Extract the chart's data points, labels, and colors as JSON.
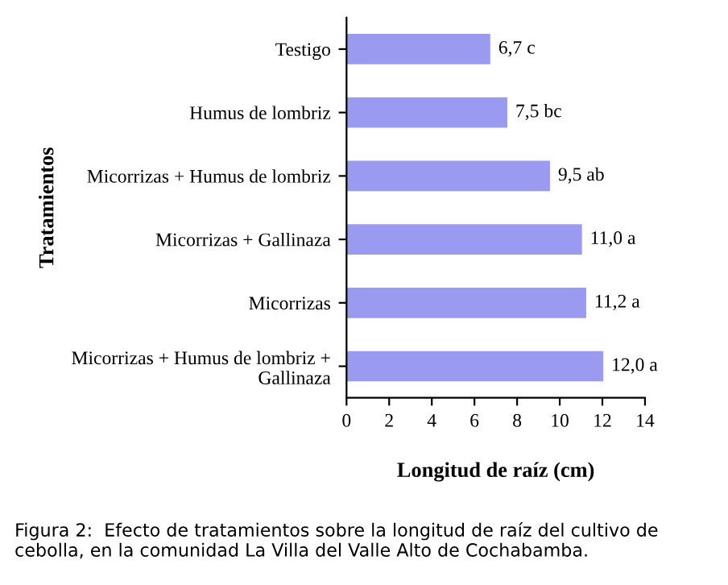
{
  "chart_data": {
    "type": "bar",
    "orientation": "horizontal",
    "xlabel": "Longitud de raíz (cm)",
    "ylabel": "Tratamientos",
    "categories": [
      "Testigo",
      "Humus de lombriz",
      "Micorrizas + Humus de lombriz",
      "Micorrizas + Gallinaza",
      "Micorrizas",
      "Micorrizas + Humus de lombriz +\nGallinaza"
    ],
    "values": [
      6.7,
      7.5,
      9.5,
      11.0,
      11.2,
      12.0
    ],
    "value_labels": [
      "6,7 c",
      "7,5 bc",
      "9,5 ab",
      "11,0 a",
      "11,2 a",
      "12,0 a"
    ],
    "color": "#9a9af0",
    "xlim": [
      0,
      14
    ],
    "xticks": [
      0,
      2,
      4,
      6,
      8,
      10,
      12,
      14
    ],
    "grid": false,
    "legend": false,
    "annotations": [
      "Figura 2:  Efecto de tratamientos sobre la longitud de raíz del cultivo de cebolla, en la comunidad La Villa del Valle Alto de Cochabamba."
    ]
  }
}
